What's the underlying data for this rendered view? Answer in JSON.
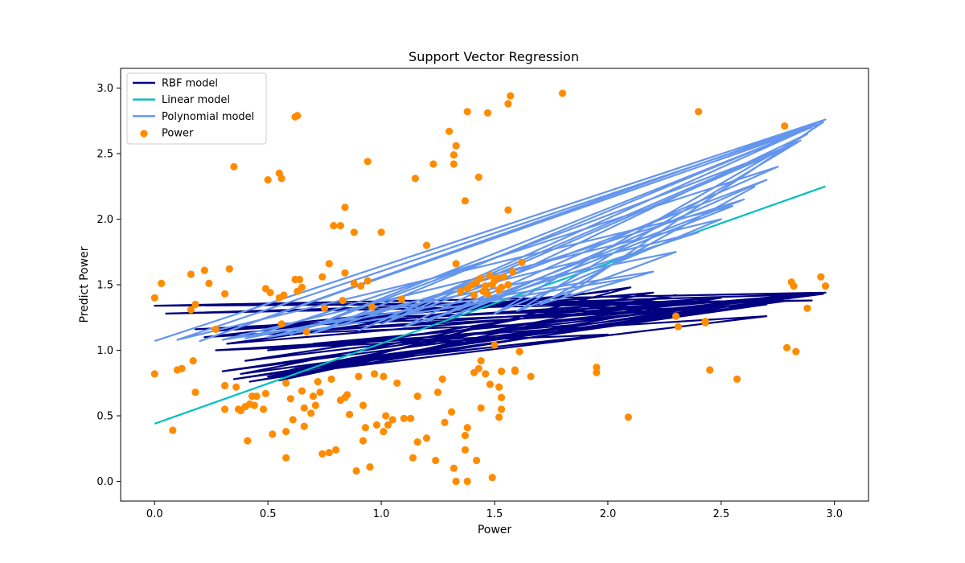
{
  "chart_data": {
    "type": "scatter",
    "title": "Support Vector Regression",
    "xlabel": "Power",
    "ylabel": "Predict Power",
    "xlim": [
      -0.15,
      3.15
    ],
    "ylim": [
      -0.15,
      3.15
    ],
    "xticks": [
      "0.0",
      "0.5",
      "1.0",
      "1.5",
      "2.0",
      "2.5",
      "3.0"
    ],
    "xtick_values": [
      0,
      0.5,
      1.0,
      1.5,
      2.0,
      2.5,
      3.0
    ],
    "yticks": [
      "0.0",
      "0.5",
      "1.0",
      "1.5",
      "2.0",
      "2.5",
      "3.0"
    ],
    "ytick_values": [
      0,
      0.5,
      1.0,
      1.5,
      2.0,
      2.5,
      3.0
    ],
    "grid": false,
    "legend_position": "top-left",
    "legend": [
      {
        "label": "RBF model",
        "kind": "line",
        "color": "#000080"
      },
      {
        "label": "Linear model",
        "kind": "line",
        "color": "#00bfbf"
      },
      {
        "label": "Polynomial model",
        "kind": "line",
        "color": "#6495ed"
      },
      {
        "label": "Power",
        "kind": "marker",
        "color": "#ff8c00"
      }
    ],
    "scatter": {
      "name": "Power",
      "color": "#ff8c00",
      "points": [
        [
          0.0,
          1.4
        ],
        [
          0.0,
          0.82
        ],
        [
          0.03,
          1.51
        ],
        [
          0.08,
          0.39
        ],
        [
          0.1,
          0.85
        ],
        [
          0.12,
          0.86
        ],
        [
          0.16,
          1.58
        ],
        [
          0.16,
          1.31
        ],
        [
          0.17,
          0.92
        ],
        [
          0.18,
          0.68
        ],
        [
          0.18,
          1.35
        ],
        [
          0.22,
          1.61
        ],
        [
          0.24,
          1.51
        ],
        [
          0.27,
          1.16
        ],
        [
          0.31,
          1.43
        ],
        [
          0.31,
          0.73
        ],
        [
          0.31,
          0.55
        ],
        [
          0.33,
          1.62
        ],
        [
          0.35,
          2.4
        ],
        [
          0.36,
          0.72
        ],
        [
          0.37,
          0.55
        ],
        [
          0.38,
          0.54
        ],
        [
          0.4,
          0.57
        ],
        [
          0.41,
          0.31
        ],
        [
          0.42,
          0.59
        ],
        [
          0.43,
          0.65
        ],
        [
          0.44,
          0.58
        ],
        [
          0.45,
          0.65
        ],
        [
          0.48,
          0.55
        ],
        [
          0.49,
          1.47
        ],
        [
          0.49,
          0.67
        ],
        [
          0.5,
          2.3
        ],
        [
          0.51,
          1.44
        ],
        [
          0.52,
          0.36
        ],
        [
          0.55,
          2.35
        ],
        [
          0.56,
          2.31
        ],
        [
          0.55,
          1.4
        ],
        [
          0.56,
          1.2
        ],
        [
          0.57,
          1.42
        ],
        [
          0.58,
          0.38
        ],
        [
          0.58,
          0.18
        ],
        [
          0.58,
          0.75
        ],
        [
          0.6,
          0.63
        ],
        [
          0.61,
          0.47
        ],
        [
          0.62,
          1.54
        ],
        [
          0.62,
          2.78
        ],
        [
          0.63,
          2.79
        ],
        [
          0.63,
          1.45
        ],
        [
          0.64,
          1.54
        ],
        [
          0.65,
          1.48
        ],
        [
          0.65,
          0.69
        ],
        [
          0.66,
          0.56
        ],
        [
          0.66,
          0.42
        ],
        [
          0.67,
          1.14
        ],
        [
          0.69,
          0.52
        ],
        [
          0.7,
          0.65
        ],
        [
          0.71,
          0.58
        ],
        [
          0.72,
          0.76
        ],
        [
          0.73,
          0.68
        ],
        [
          0.74,
          1.56
        ],
        [
          0.74,
          0.21
        ],
        [
          0.75,
          1.32
        ],
        [
          0.77,
          1.66
        ],
        [
          0.77,
          0.22
        ],
        [
          0.78,
          0.78
        ],
        [
          0.79,
          1.95
        ],
        [
          0.8,
          0.24
        ],
        [
          0.82,
          1.95
        ],
        [
          0.82,
          0.62
        ],
        [
          0.83,
          1.38
        ],
        [
          0.84,
          0.64
        ],
        [
          0.84,
          1.59
        ],
        [
          0.84,
          2.09
        ],
        [
          0.85,
          0.66
        ],
        [
          0.86,
          0.51
        ],
        [
          0.88,
          1.9
        ],
        [
          0.88,
          1.51
        ],
        [
          0.89,
          0.08
        ],
        [
          0.9,
          0.8
        ],
        [
          0.91,
          1.49
        ],
        [
          0.92,
          0.58
        ],
        [
          0.92,
          0.31
        ],
        [
          0.93,
          0.41
        ],
        [
          0.94,
          2.44
        ],
        [
          0.94,
          1.53
        ],
        [
          0.95,
          0.11
        ],
        [
          0.96,
          1.33
        ],
        [
          0.97,
          0.82
        ],
        [
          0.98,
          0.43
        ],
        [
          1.0,
          1.9
        ],
        [
          1.01,
          0.38
        ],
        [
          1.01,
          0.8
        ],
        [
          1.02,
          0.5
        ],
        [
          1.03,
          0.43
        ],
        [
          1.05,
          0.47
        ],
        [
          1.07,
          0.75
        ],
        [
          1.09,
          1.39
        ],
        [
          1.1,
          0.48
        ],
        [
          1.13,
          0.48
        ],
        [
          1.14,
          0.18
        ],
        [
          1.15,
          2.31
        ],
        [
          1.16,
          0.65
        ],
        [
          1.16,
          0.3
        ],
        [
          1.2,
          1.8
        ],
        [
          1.2,
          0.33
        ],
        [
          1.23,
          2.42
        ],
        [
          1.24,
          0.16
        ],
        [
          1.25,
          0.68
        ],
        [
          1.27,
          0.78
        ],
        [
          1.28,
          0.45
        ],
        [
          1.3,
          2.67
        ],
        [
          1.31,
          0.53
        ],
        [
          1.32,
          2.49
        ],
        [
          1.32,
          2.42
        ],
        [
          1.32,
          0.1
        ],
        [
          1.33,
          2.56
        ],
        [
          1.33,
          0.0
        ],
        [
          1.33,
          1.66
        ],
        [
          1.37,
          2.14
        ],
        [
          1.37,
          0.35
        ],
        [
          1.37,
          0.24
        ],
        [
          1.38,
          2.82
        ],
        [
          1.38,
          0.41
        ],
        [
          1.38,
          0.0
        ],
        [
          1.41,
          0.83
        ],
        [
          1.42,
          0.16
        ],
        [
          1.43,
          2.32
        ],
        [
          1.43,
          0.86
        ],
        [
          1.44,
          0.92
        ],
        [
          1.44,
          0.56
        ],
        [
          1.46,
          0.82
        ],
        [
          1.47,
          2.81
        ],
        [
          1.48,
          0.74
        ],
        [
          1.49,
          0.03
        ],
        [
          1.5,
          1.04
        ],
        [
          1.52,
          0.49
        ],
        [
          1.52,
          0.72
        ],
        [
          1.53,
          0.64
        ],
        [
          1.53,
          0.84
        ],
        [
          1.53,
          0.55
        ],
        [
          1.56,
          2.88
        ],
        [
          1.56,
          2.07
        ],
        [
          1.57,
          2.94
        ],
        [
          1.59,
          0.85
        ],
        [
          1.59,
          0.84
        ],
        [
          1.61,
          0.99
        ],
        [
          1.62,
          1.67
        ],
        [
          1.66,
          0.8
        ],
        [
          1.8,
          2.96
        ],
        [
          1.95,
          0.87
        ],
        [
          1.95,
          0.83
        ],
        [
          2.09,
          0.49
        ],
        [
          2.3,
          1.26
        ],
        [
          2.31,
          1.18
        ],
        [
          2.4,
          2.82
        ],
        [
          2.43,
          1.21
        ],
        [
          2.43,
          1.22
        ],
        [
          2.45,
          0.85
        ],
        [
          2.57,
          0.78
        ],
        [
          2.78,
          2.71
        ],
        [
          2.79,
          1.02
        ],
        [
          2.81,
          1.52
        ],
        [
          2.82,
          1.49
        ],
        [
          2.83,
          0.99
        ],
        [
          2.88,
          1.32
        ],
        [
          2.94,
          1.56
        ],
        [
          2.96,
          1.49
        ],
        [
          1.4,
          1.5
        ],
        [
          1.42,
          1.52
        ],
        [
          1.44,
          1.55
        ],
        [
          1.46,
          1.49
        ],
        [
          1.48,
          1.57
        ],
        [
          1.5,
          1.53
        ],
        [
          1.51,
          1.55
        ],
        [
          1.53,
          1.48
        ],
        [
          1.45,
          1.45
        ],
        [
          1.47,
          1.43
        ],
        [
          1.52,
          1.46
        ],
        [
          1.54,
          1.56
        ],
        [
          1.35,
          1.45
        ],
        [
          1.38,
          1.47
        ],
        [
          1.56,
          1.5
        ],
        [
          1.58,
          1.6
        ],
        [
          1.41,
          1.42
        ],
        [
          1.49,
          1.5
        ]
      ]
    },
    "series": [
      {
        "name": "RBF model",
        "color": "#000080",
        "points": [
          [
            0.0,
            1.34
          ],
          [
            2.9,
            1.38
          ],
          [
            0.05,
            1.28
          ],
          [
            2.95,
            1.43
          ],
          [
            0.3,
            0.84
          ],
          [
            2.5,
            1.4
          ],
          [
            0.28,
            1.15
          ],
          [
            2.0,
            1.45
          ],
          [
            0.22,
            1.1
          ],
          [
            2.7,
            1.35
          ],
          [
            0.35,
            0.78
          ],
          [
            1.9,
            1.2
          ],
          [
            0.5,
            1.0
          ],
          [
            2.85,
            1.42
          ],
          [
            0.42,
            0.76
          ],
          [
            2.2,
            1.3
          ],
          [
            0.18,
            1.16
          ],
          [
            2.6,
            1.38
          ],
          [
            0.6,
            0.85
          ],
          [
            2.3,
            1.42
          ],
          [
            0.4,
            0.92
          ],
          [
            2.96,
            1.44
          ],
          [
            0.32,
            1.05
          ],
          [
            2.1,
            1.48
          ],
          [
            0.55,
            0.77
          ],
          [
            1.7,
            1.2
          ],
          [
            0.45,
            1.12
          ],
          [
            2.4,
            1.36
          ],
          [
            0.0,
            1.34
          ],
          [
            2.96,
            1.44
          ],
          [
            0.62,
            0.86
          ],
          [
            2.0,
            1.12
          ],
          [
            0.27,
            1.0
          ],
          [
            2.7,
            1.26
          ],
          [
            0.5,
            0.8
          ],
          [
            1.5,
            1.1
          ],
          [
            0.7,
            1.05
          ],
          [
            2.8,
            1.38
          ],
          [
            0.38,
            0.82
          ],
          [
            2.2,
            1.44
          ],
          [
            0.9,
            1.25
          ],
          [
            2.5,
            1.33
          ]
        ]
      },
      {
        "name": "Linear model",
        "color": "#00bfbf",
        "points": [
          [
            0.0,
            0.44
          ],
          [
            2.96,
            2.25
          ]
        ]
      },
      {
        "name": "Polynomial model",
        "color": "#6495ed",
        "points": [
          [
            0.0,
            1.07
          ],
          [
            2.96,
            2.76
          ],
          [
            0.2,
            1.07
          ],
          [
            2.9,
            2.7
          ],
          [
            0.6,
            1.12
          ],
          [
            2.8,
            2.55
          ],
          [
            1.0,
            1.2
          ],
          [
            2.7,
            2.3
          ],
          [
            1.3,
            1.25
          ],
          [
            2.55,
            2.1
          ],
          [
            0.1,
            1.08
          ],
          [
            2.92,
            2.72
          ],
          [
            0.9,
            1.15
          ],
          [
            2.85,
            2.6
          ],
          [
            1.6,
            1.3
          ],
          [
            2.3,
            1.75
          ],
          [
            0.4,
            1.09
          ],
          [
            2.75,
            2.4
          ],
          [
            1.2,
            1.22
          ],
          [
            2.6,
            2.15
          ],
          [
            0.7,
            1.13
          ],
          [
            2.95,
            2.74
          ],
          [
            1.8,
            1.4
          ],
          [
            2.2,
            1.6
          ],
          [
            0.3,
            1.08
          ],
          [
            2.5,
            2.0
          ],
          [
            1.5,
            1.28
          ],
          [
            2.88,
            2.65
          ],
          [
            1.1,
            1.18
          ],
          [
            2.4,
            1.9
          ],
          [
            0.5,
            1.1
          ],
          [
            2.1,
            1.55
          ],
          [
            1.7,
            1.35
          ],
          [
            2.65,
            2.25
          ]
        ]
      }
    ]
  }
}
